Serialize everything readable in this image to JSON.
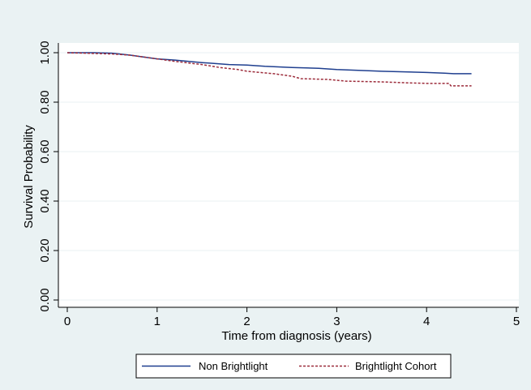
{
  "colors": {
    "outer_background": "#eaf2f3",
    "plot_background": "#ffffff",
    "grid": "#eaf2f3",
    "axis": "#000000"
  },
  "chart_data": {
    "type": "line",
    "title": "",
    "xlabel": "Time from diagnosis (years)",
    "ylabel": "Survival Probability",
    "xlim": [
      0,
      5
    ],
    "ylim": [
      0,
      1
    ],
    "x_ticks": [
      0,
      1,
      2,
      3,
      4,
      5
    ],
    "x_tick_labels": [
      "0",
      "1",
      "2",
      "3",
      "4",
      "5"
    ],
    "y_ticks": [
      0,
      0.2,
      0.4,
      0.6,
      0.8,
      1.0
    ],
    "y_tick_labels": [
      "0.00",
      "0.20",
      "0.40",
      "0.60",
      "0.80",
      "1.00"
    ],
    "grid": true,
    "legend_position": "bottom",
    "series": [
      {
        "name": "Non Brightlight",
        "color": "#1f3f8f",
        "style": "solid",
        "points": [
          [
            0,
            1.0
          ],
          [
            0.3,
            1.0
          ],
          [
            0.5,
            0.998
          ],
          [
            0.7,
            0.99
          ],
          [
            1.0,
            0.975
          ],
          [
            1.2,
            0.97
          ],
          [
            1.5,
            0.96
          ],
          [
            1.8,
            0.952
          ],
          [
            2.0,
            0.95
          ],
          [
            2.2,
            0.945
          ],
          [
            2.5,
            0.94
          ],
          [
            2.8,
            0.937
          ],
          [
            3.0,
            0.932
          ],
          [
            3.3,
            0.928
          ],
          [
            3.5,
            0.925
          ],
          [
            3.8,
            0.922
          ],
          [
            4.0,
            0.92
          ],
          [
            4.2,
            0.917
          ],
          [
            4.3,
            0.915
          ],
          [
            4.5,
            0.915
          ]
        ]
      },
      {
        "name": "Brightlight Cohort",
        "color": "#9c2b3a",
        "style": "dashed",
        "points": [
          [
            0,
            1.0
          ],
          [
            0.5,
            0.995
          ],
          [
            0.7,
            0.99
          ],
          [
            0.9,
            0.98
          ],
          [
            1.0,
            0.975
          ],
          [
            1.2,
            0.965
          ],
          [
            1.5,
            0.952
          ],
          [
            1.7,
            0.94
          ],
          [
            1.9,
            0.932
          ],
          [
            2.0,
            0.925
          ],
          [
            2.3,
            0.915
          ],
          [
            2.5,
            0.905
          ],
          [
            2.6,
            0.895
          ],
          [
            2.9,
            0.892
          ],
          [
            3.1,
            0.885
          ],
          [
            3.5,
            0.882
          ],
          [
            3.8,
            0.878
          ],
          [
            4.0,
            0.876
          ],
          [
            4.25,
            0.876
          ],
          [
            4.27,
            0.866
          ],
          [
            4.5,
            0.866
          ]
        ]
      }
    ]
  }
}
